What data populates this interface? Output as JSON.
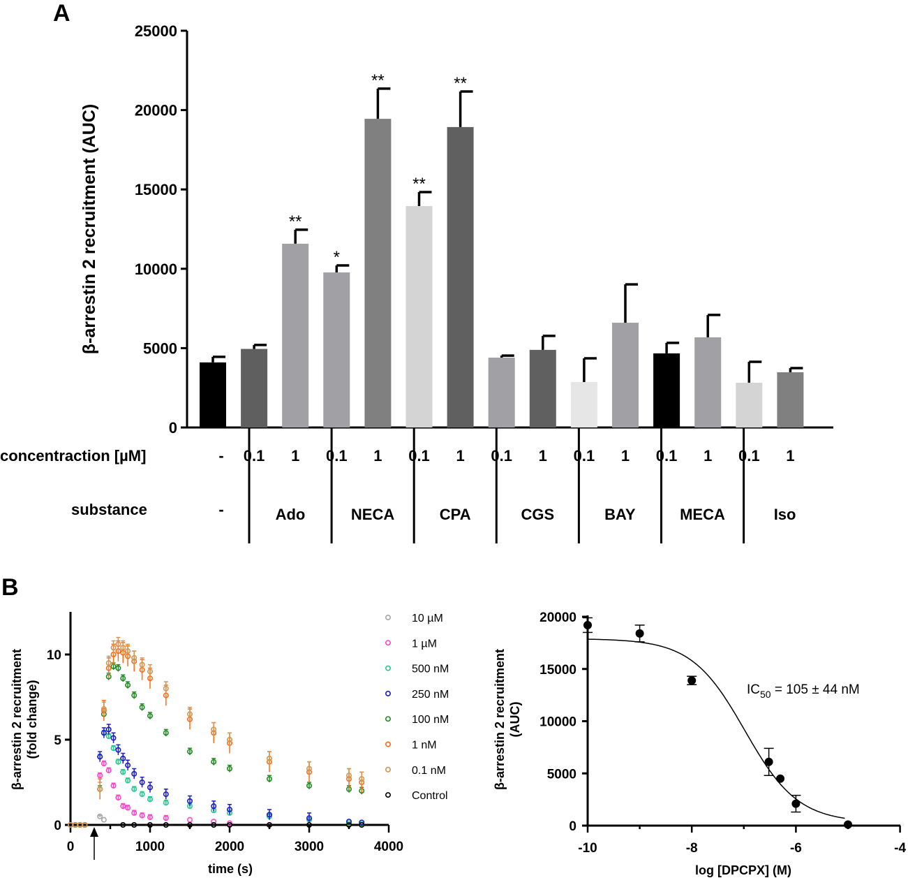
{
  "panel_labels": {
    "a": "A",
    "b": "B"
  },
  "chart_data": [
    {
      "type": "bar",
      "panel": "A",
      "ylabel": "β-arrestin 2 recruitment (AUC)",
      "ylim": [
        0,
        25000
      ],
      "yticks": [
        "0",
        "5000",
        "10000",
        "15000",
        "20000",
        "25000"
      ],
      "row_labels": {
        "concentration": "concentraction [µM]",
        "substance": "substance"
      },
      "control": {
        "concentration": "-",
        "substance": "-",
        "value": 4100,
        "err": 350,
        "color": "#000000",
        "sig": ""
      },
      "groups": [
        {
          "substance": "Ado",
          "bars": [
            {
              "concentration": "0.1",
              "value": 4950,
              "err": 250,
              "color": "#5f5f5f",
              "sig": ""
            },
            {
              "concentration": "1",
              "value": 11580,
              "err": 880,
              "color": "#a0a0a5",
              "sig": "**"
            }
          ]
        },
        {
          "substance": "NECA",
          "bars": [
            {
              "concentration": "0.1",
              "value": 9770,
              "err": 440,
              "color": "#a0a0a5",
              "sig": "*"
            },
            {
              "concentration": "1",
              "value": 19450,
              "err": 1900,
              "color": "#808080",
              "sig": "**"
            }
          ]
        },
        {
          "substance": "CPA",
          "bars": [
            {
              "concentration": "0.1",
              "value": 13950,
              "err": 880,
              "color": "#d4d4d4",
              "sig": "**"
            },
            {
              "concentration": "1",
              "value": 18930,
              "err": 2240,
              "color": "#606060",
              "sig": "**"
            }
          ]
        },
        {
          "substance": "CGS",
          "bars": [
            {
              "concentration": "0.1",
              "value": 4400,
              "err": 130,
              "color": "#a0a0a5",
              "sig": ""
            },
            {
              "concentration": "1",
              "value": 4890,
              "err": 880,
              "color": "#606060",
              "sig": ""
            }
          ]
        },
        {
          "substance": "BAY",
          "bars": [
            {
              "concentration": "0.1",
              "value": 2860,
              "err": 1500,
              "color": "#e6e6e6",
              "sig": ""
            },
            {
              "concentration": "1",
              "value": 6600,
              "err": 2420,
              "color": "#a0a0a5",
              "sig": ""
            }
          ]
        },
        {
          "substance": "MECA",
          "bars": [
            {
              "concentration": "0.1",
              "value": 4670,
              "err": 660,
              "color": "#000000",
              "sig": ""
            },
            {
              "concentration": "1",
              "value": 5680,
              "err": 1410,
              "color": "#a0a0a5",
              "sig": ""
            }
          ]
        },
        {
          "substance": "Iso",
          "bars": [
            {
              "concentration": "0.1",
              "value": 2820,
              "err": 1320,
              "color": "#d4d4d4",
              "sig": ""
            },
            {
              "concentration": "1",
              "value": 3480,
              "err": 260,
              "color": "#808080",
              "sig": ""
            }
          ]
        }
      ]
    },
    {
      "type": "scatter",
      "panel": "B-left",
      "xlabel": "time (s)",
      "ylabel": "β-arrestin 2 recruitment",
      "ylabel2": "(fold change)",
      "xlim": [
        0,
        4000
      ],
      "ylim": [
        0,
        12.5
      ],
      "xticks": [
        "0",
        "1000",
        "2000",
        "3000",
        "4000"
      ],
      "yticks": [
        "0",
        "5",
        "10"
      ],
      "annotation": "arrow at agonist addition (~300 s)",
      "x": [
        0,
        60,
        120,
        180,
        370,
        420,
        480,
        540,
        600,
        660,
        720,
        800,
        900,
        1000,
        1200,
        1500,
        1800,
        2000,
        2500,
        3000,
        3500,
        3660
      ],
      "series": [
        {
          "name": "10 µM",
          "color": "#a6a6a6",
          "err": 0.05,
          "values": [
            0,
            0,
            0,
            0,
            0.5,
            0.3,
            null,
            null,
            null,
            null,
            null,
            null,
            null,
            null,
            null,
            null,
            null,
            null,
            null,
            null,
            null,
            null
          ]
        },
        {
          "name": "1 µM",
          "color": "#ff44cc",
          "err": 0.15,
          "values": [
            0,
            0,
            0,
            0,
            2.9,
            3.6,
            3.2,
            2.3,
            1.6,
            1.1,
            1.0,
            0.7,
            0.55,
            0.45,
            0.4,
            0.3,
            0.2,
            0.1,
            0.0,
            null,
            null,
            null
          ]
        },
        {
          "name": "500 nM",
          "color": "#22c88c",
          "err": 0.15,
          "values": [
            0,
            0,
            0,
            0,
            4.0,
            5.4,
            5.2,
            4.5,
            3.7,
            3.1,
            2.6,
            2.1,
            1.8,
            1.5,
            1.3,
            1.1,
            0.85,
            0.7,
            0.5,
            0.3,
            0.1,
            0.05
          ]
        },
        {
          "name": "250 nM",
          "color": "#1a1acc",
          "err": 0.3,
          "values": [
            0,
            0,
            0,
            0,
            4.0,
            5.4,
            5.6,
            5.1,
            4.4,
            3.9,
            3.5,
            3.0,
            2.5,
            2.2,
            1.8,
            1.4,
            1.1,
            0.9,
            0.6,
            0.4,
            0.2,
            0.15
          ]
        },
        {
          "name": "100 nM",
          "color": "#1e8c1e",
          "err": 0.2,
          "values": [
            0,
            0,
            0,
            0,
            2.1,
            6.5,
            8.7,
            9.3,
            9.2,
            8.6,
            8.2,
            7.6,
            6.9,
            6.4,
            5.4,
            4.3,
            3.7,
            3.3,
            2.7,
            2.3,
            2.1,
            2.0
          ]
        },
        {
          "name": "1 nM",
          "color": "#ff6a14",
          "err": 0.6,
          "values": [
            0,
            0,
            0,
            0,
            2.1,
            6.7,
            9.2,
            10.0,
            10.2,
            10.1,
            9.9,
            9.6,
            9.1,
            8.6,
            7.6,
            6.2,
            5.4,
            4.8,
            3.7,
            3.1,
            2.7,
            2.5
          ]
        },
        {
          "name": "0.1 nM",
          "color": "#d29650",
          "err": 0.4,
          "values": [
            0,
            0,
            0,
            0,
            2.1,
            6.8,
            9.5,
            10.4,
            10.6,
            10.4,
            10.2,
            9.8,
            9.4,
            9.0,
            8.0,
            6.5,
            5.6,
            5.0,
            3.9,
            3.3,
            2.9,
            2.7
          ]
        },
        {
          "name": "Control",
          "color": "#000000",
          "err": 0,
          "values": [
            null,
            null,
            null,
            null,
            null,
            null,
            null,
            null,
            null,
            0,
            null,
            0,
            null,
            0,
            0,
            0,
            0,
            0,
            0,
            0,
            0,
            0
          ]
        }
      ]
    },
    {
      "type": "scatter",
      "panel": "B-right",
      "xlabel": "log [DPCPX] (M)",
      "ylabel": "β-arrestin 2 recruitment",
      "ylabel2": "(AUC)",
      "xlim": [
        -10,
        -4
      ],
      "ylim": [
        0,
        20000
      ],
      "xticks": [
        "-10",
        "-8",
        "-6",
        "-4"
      ],
      "yticks": [
        "0",
        "5000",
        "10000",
        "15000",
        "20000"
      ],
      "points": [
        {
          "x": -10,
          "y": 19200,
          "err": 700
        },
        {
          "x": -9,
          "y": 18400,
          "err": 800
        },
        {
          "x": -8,
          "y": 13900,
          "err": 400
        },
        {
          "x": -6.52,
          "y": 6100,
          "err": 1300
        },
        {
          "x": -6.3,
          "y": 4500,
          "err": 0
        },
        {
          "x": -6,
          "y": 2100,
          "err": 800
        },
        {
          "x": -5,
          "y": 100,
          "err": 0
        }
      ],
      "fit": {
        "top": 17900,
        "bottom": 300,
        "logIC50": -6.98,
        "hill": 0.85,
        "x_range": [
          -10,
          -5.05
        ]
      },
      "annotation": {
        "prefix": "IC",
        "sub": "50",
        "suffix": " = 105 ± 44 nM"
      }
    }
  ]
}
